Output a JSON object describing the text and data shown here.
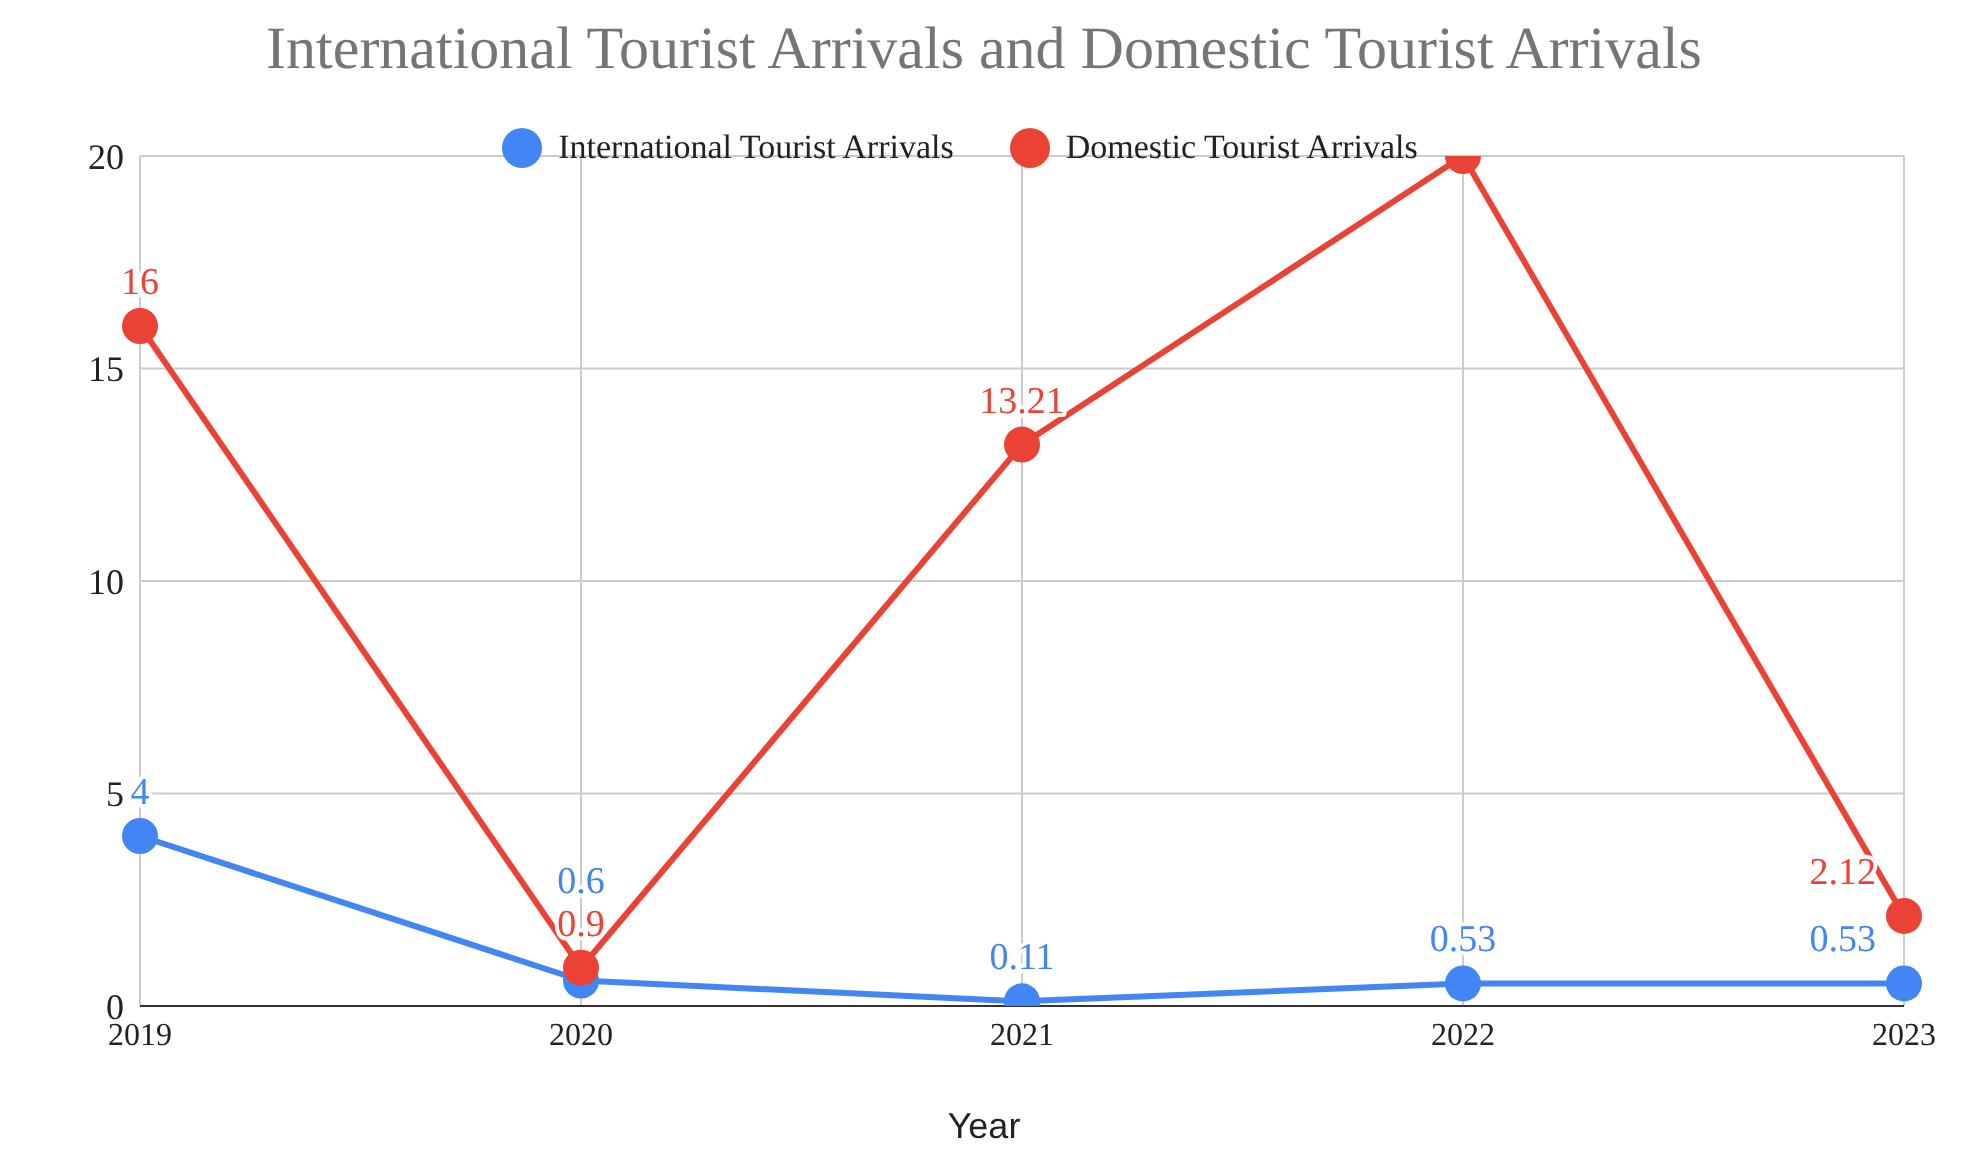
{
  "chart_data": {
    "type": "line",
    "title": "International Tourist Arrivals and Domestic Tourist Arrivals",
    "xlabel": "Year",
    "categories": [
      "2019",
      "2020",
      "2021",
      "2022",
      "2023"
    ],
    "series": [
      {
        "name": "International Tourist Arrivals",
        "color": "#4285f4",
        "values": [
          4,
          0.6,
          0.11,
          0.53,
          0.53
        ],
        "value_labels": [
          "4",
          "0.6",
          "0.11",
          "0.53",
          "0.53"
        ]
      },
      {
        "name": "Domestic Tourist Arrivals",
        "color": "#ea4335",
        "values": [
          16,
          0.9,
          13.21,
          20,
          2.12
        ],
        "value_labels": [
          "16",
          "0.9",
          "13.21",
          null,
          "2.12"
        ]
      }
    ],
    "ylim": [
      0,
      20
    ],
    "yticks": [
      0,
      5,
      10,
      15,
      20
    ],
    "grid": true,
    "legend": "top",
    "marker": "circle",
    "line_style": "solid"
  }
}
